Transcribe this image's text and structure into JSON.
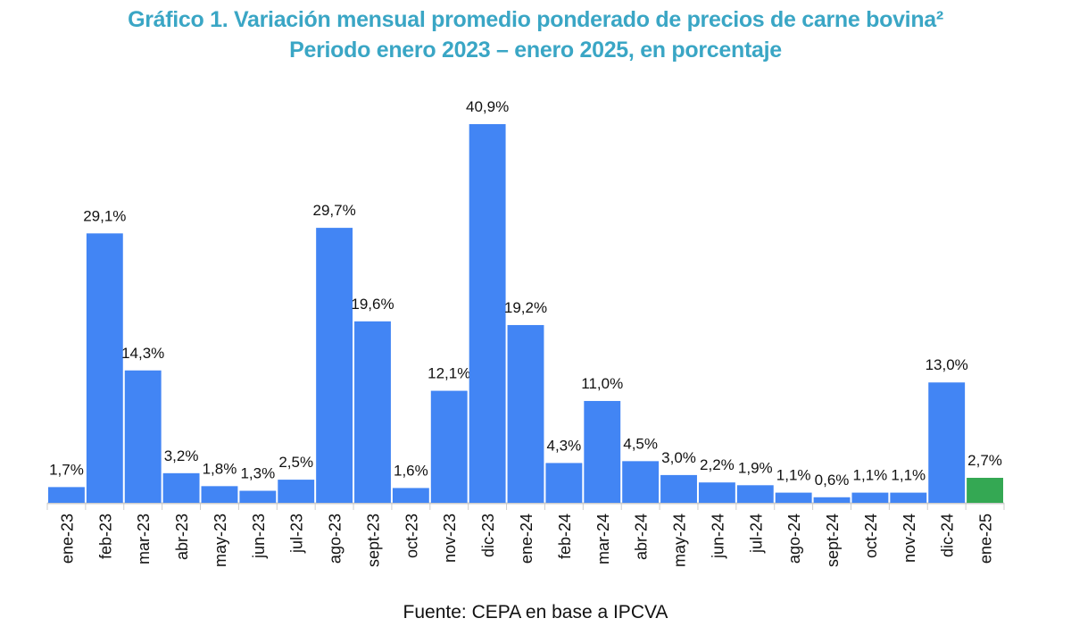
{
  "chart_data": {
    "type": "bar",
    "title": "Gráfico 1. Variación mensual promedio ponderado de precios de carne bovina²",
    "subtitle": "Periodo enero 2023 – enero 2025, en porcentaje",
    "xlabel": "",
    "ylabel": "",
    "ylim": [
      0,
      40.9
    ],
    "grid": false,
    "legend": "none",
    "categories": [
      "ene-23",
      "feb-23",
      "mar-23",
      "abr-23",
      "may-23",
      "jun-23",
      "jul-23",
      "ago-23",
      "sept-23",
      "oct-23",
      "nov-23",
      "dic-23",
      "ene-24",
      "feb-24",
      "mar-24",
      "abr-24",
      "may-24",
      "jun-24",
      "jul-24",
      "ago-24",
      "sept-24",
      "oct-24",
      "nov-24",
      "dic-24",
      "ene-25"
    ],
    "values": [
      1.7,
      29.1,
      14.3,
      3.2,
      1.8,
      1.3,
      2.5,
      29.7,
      19.6,
      1.6,
      12.1,
      40.9,
      19.2,
      4.3,
      11.0,
      4.5,
      3.0,
      2.2,
      1.9,
      1.1,
      0.6,
      1.1,
      1.1,
      13.0,
      2.7
    ],
    "data_labels": [
      "1,7%",
      "29,1%",
      "14,3%",
      "3,2%",
      "1,8%",
      "1,3%",
      "2,5%",
      "29,7%",
      "19,6%",
      "1,6%",
      "12,1%",
      "40,9%",
      "19,2%",
      "4,3%",
      "11,0%",
      "4,5%",
      "3,0%",
      "2,2%",
      "1,9%",
      "1,1%",
      "0,6%",
      "1,1%",
      "1,1%",
      "13,0%",
      "2,7%"
    ],
    "colors": {
      "default": "#4285f4",
      "highlight": "#34a853"
    },
    "highlight_index": 24
  },
  "source": "Fuente: CEPA en base a IPCVA"
}
